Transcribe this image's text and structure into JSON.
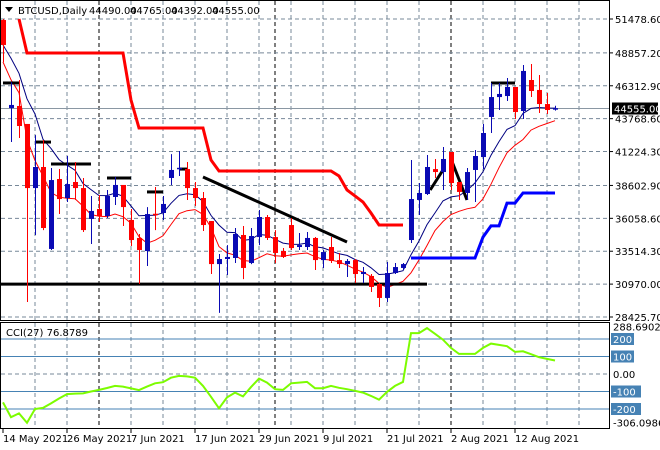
{
  "header": {
    "symbol": "BTCUSD,Daily",
    "open": "44490.00",
    "high": "44765.00",
    "low": "44392.00",
    "close": "44555.00"
  },
  "colors": {
    "bull": "#0a0ab4",
    "bear": "#ff0000",
    "ma_fast": "#000080",
    "ma_slow": "#ff0000",
    "upper_channel": "#ff0000",
    "lower_channel": "#0000ff",
    "cci": "#7cfc00",
    "cci_levels": "#4682b4",
    "grid": "#778899",
    "drawing": "#000000"
  },
  "chart_data": [
    {
      "type": "candlestick",
      "ylim": [
        28425.7,
        51478.6
      ],
      "grid": true,
      "price_ticks": [
        "51478.60",
        "48857.20",
        "46312.90",
        "43768.60",
        "41224.30",
        "38602.90",
        "36058.60",
        "33514.30",
        "30970.00",
        "28425.70"
      ],
      "current_price": "44555.00",
      "x_ticks": [
        {
          "bar": 0,
          "label": "14 May 2021"
        },
        {
          "bar": 8,
          "label": "26 May 2021"
        },
        {
          "bar": 16,
          "label": "7 Jun 2021"
        },
        {
          "bar": 24,
          "label": "17 Jun 2021"
        },
        {
          "bar": 32,
          "label": "29 Jun 2021"
        },
        {
          "bar": 40,
          "label": "9 Jul 2021"
        },
        {
          "bar": 48,
          "label": "21 Jul 2021"
        },
        {
          "bar": 56,
          "label": "2 Aug 2021"
        },
        {
          "bar": 64,
          "label": "12 Aug 2021"
        }
      ],
      "ohlc": [
        [
          51400,
          51480,
          48150,
          49470
        ],
        [
          44590,
          46600,
          41960,
          44830
        ],
        [
          44750,
          46760,
          42270,
          43200
        ],
        [
          43360,
          43360,
          29590,
          38400
        ],
        [
          38400,
          42500,
          34770,
          40030
        ],
        [
          40030,
          42120,
          35150,
          35310
        ],
        [
          33690,
          39950,
          33610,
          39020
        ],
        [
          39100,
          39870,
          36390,
          37550
        ],
        [
          37630,
          40880,
          37320,
          38710
        ],
        [
          38870,
          40420,
          37480,
          38400
        ],
        [
          38400,
          39180,
          35000,
          35150
        ],
        [
          36010,
          37790,
          34070,
          36630
        ],
        [
          36780,
          37860,
          35770,
          36240
        ],
        [
          36240,
          38250,
          36080,
          37790
        ],
        [
          37710,
          39260,
          37090,
          38640
        ],
        [
          38640,
          38640,
          35470,
          36930
        ],
        [
          35930,
          36780,
          33920,
          34380
        ],
        [
          34540,
          34850,
          30980,
          33610
        ],
        [
          33530,
          36930,
          32370,
          36390
        ],
        [
          36390,
          38480,
          35150,
          36320
        ],
        [
          36470,
          37790,
          35930,
          37170
        ],
        [
          39180,
          41030,
          38640,
          39800
        ],
        [
          39870,
          41270,
          39330,
          39950
        ],
        [
          39870,
          40420,
          37480,
          38400
        ],
        [
          38400,
          38870,
          37010,
          37630
        ],
        [
          37630,
          38100,
          35080,
          35540
        ],
        [
          35850,
          35850,
          31750,
          32520
        ],
        [
          32520,
          33300,
          28740,
          32910
        ],
        [
          32910,
          33990,
          31670,
          33070
        ],
        [
          32990,
          35310,
          32600,
          34850
        ],
        [
          34770,
          35470,
          31360,
          32220
        ],
        [
          32600,
          35310,
          32520,
          34690
        ],
        [
          34610,
          36700,
          33990,
          36160
        ],
        [
          36160,
          36320,
          34380,
          34540
        ],
        [
          34610,
          35150,
          32600,
          33380
        ],
        [
          33530,
          33760,
          32990,
          33070
        ],
        [
          35540,
          36080,
          33610,
          33760
        ],
        [
          33840,
          34920,
          33610,
          33990
        ],
        [
          33840,
          35000,
          33610,
          34540
        ],
        [
          34540,
          34610,
          32060,
          32830
        ],
        [
          32830,
          33610,
          32220,
          33450
        ],
        [
          33840,
          34610,
          32600,
          32760
        ],
        [
          32830,
          33380,
          32220,
          32520
        ],
        [
          32520,
          32910,
          31520,
          32760
        ],
        [
          32830,
          32910,
          31060,
          31750
        ],
        [
          31750,
          32290,
          31060,
          31910
        ],
        [
          31600,
          31750,
          30360,
          30750
        ],
        [
          30980,
          31060,
          29200,
          29900
        ],
        [
          29900,
          32680,
          29590,
          31830
        ],
        [
          31830,
          32600,
          31750,
          32290
        ],
        [
          32220,
          32600,
          32060,
          32520
        ],
        [
          34380,
          40570,
          34150,
          37550
        ],
        [
          37480,
          38790,
          36320,
          38020
        ],
        [
          37940,
          40960,
          37860,
          40030
        ],
        [
          39870,
          40650,
          39180,
          39640
        ],
        [
          39640,
          41580,
          38250,
          40650
        ],
        [
          41190,
          41190,
          38250,
          38790
        ],
        [
          38870,
          38870,
          37480,
          38100
        ],
        [
          38020,
          39950,
          37480,
          39640
        ],
        [
          39800,
          41340,
          37320,
          40880
        ],
        [
          40800,
          43360,
          39870,
          42660
        ],
        [
          43900,
          46530,
          42660,
          45440
        ],
        [
          45440,
          46530,
          44440,
          45680
        ],
        [
          45520,
          46910,
          45140,
          46220
        ],
        [
          46220,
          46220,
          43740,
          44280
        ],
        [
          44360,
          47920,
          43740,
          47460
        ],
        [
          46760,
          48000,
          45440,
          45910
        ],
        [
          45990,
          47150,
          44210,
          44900
        ],
        [
          44900,
          45750,
          44130,
          44440
        ],
        [
          44490,
          44765,
          44392,
          44555
        ]
      ],
      "upper_channel": [
        null,
        null,
        51480,
        48850,
        48850,
        48850,
        48850,
        48850,
        48850,
        48850,
        48850,
        48850,
        48850,
        48850,
        48850,
        48850,
        45210,
        43050,
        43050,
        43050,
        43050,
        43050,
        43050,
        43050,
        43050,
        43050,
        40570,
        39720,
        39720,
        39720,
        39720,
        39720,
        39720,
        39720,
        39720,
        39720,
        39720,
        39720,
        39720,
        39720,
        39720,
        39720,
        39330,
        38250,
        37790,
        37320,
        36470,
        35540,
        35540,
        35540,
        35540,
        null,
        null,
        null,
        null,
        null,
        null,
        null,
        null,
        null,
        null,
        null,
        null,
        null,
        null,
        null,
        null,
        null,
        null,
        null
      ],
      "lower_channel": [
        null,
        null,
        null,
        null,
        null,
        null,
        null,
        null,
        null,
        null,
        null,
        null,
        null,
        null,
        null,
        null,
        null,
        null,
        null,
        null,
        null,
        null,
        null,
        null,
        null,
        null,
        null,
        null,
        null,
        null,
        null,
        null,
        null,
        null,
        null,
        null,
        null,
        null,
        null,
        null,
        null,
        null,
        null,
        null,
        null,
        null,
        null,
        null,
        null,
        null,
        null,
        32990,
        32990,
        32990,
        32990,
        32990,
        32990,
        32990,
        32990,
        32990,
        34610,
        35470,
        35470,
        37240,
        37240,
        38020,
        38020,
        38020,
        38020,
        38020
      ],
      "horizontal_levels": [
        {
          "from_bar": 0,
          "to_bar": 2,
          "price": 46530
        },
        {
          "from_bar": 4,
          "to_bar": 6,
          "price": 41960
        },
        {
          "from_bar": 6,
          "to_bar": 11,
          "price": 40260
        },
        {
          "from_bar": 13,
          "to_bar": 16,
          "price": 39180
        },
        {
          "from_bar": 18,
          "to_bar": 20,
          "price": 38100
        },
        {
          "from_bar": 22,
          "to_bar": 23,
          "price": 39870
        },
        {
          "from_bar": 61,
          "to_bar": 64,
          "price": 46530
        },
        {
          "from_bar": -0.4,
          "to_bar": 53,
          "price": 30970
        }
      ],
      "trendlines": [
        {
          "from": [
            25,
            39260
          ],
          "to": [
            43,
            34230
          ]
        },
        {
          "from": [
            53.4,
            38250
          ],
          "to": [
            55,
            39800
          ]
        },
        {
          "from": [
            56.2,
            40340
          ],
          "to": [
            58,
            37480
          ]
        }
      ]
    },
    {
      "type": "line",
      "label": "CCI(27) 76.8789",
      "ylim": [
        -306.0986,
        288.6902
      ],
      "ticks": [
        "288.6902",
        "200",
        "100",
        "0.00",
        "-100",
        "-200",
        "-306.0986"
      ],
      "levels": [
        200,
        100,
        -100,
        -200
      ],
      "values": [
        -162,
        -247,
        -225,
        -279,
        -200,
        -194,
        -168,
        -140,
        -115,
        -112,
        -111,
        -100,
        -91,
        -80,
        -68,
        -72,
        -82,
        -92,
        -72,
        -53,
        -47,
        -21,
        -11,
        -14,
        -21,
        -68,
        -130,
        -196,
        -134,
        -106,
        -128,
        -75,
        -26,
        -49,
        -87,
        -91,
        -53,
        -49,
        -45,
        -81,
        -81,
        -68,
        -79,
        -87,
        -96,
        -106,
        -125,
        -147,
        -102,
        -68,
        -45,
        234,
        234,
        262,
        230,
        196,
        149,
        115,
        115,
        115,
        149,
        174,
        166,
        159,
        126,
        130,
        113,
        96,
        86,
        77
      ]
    }
  ]
}
